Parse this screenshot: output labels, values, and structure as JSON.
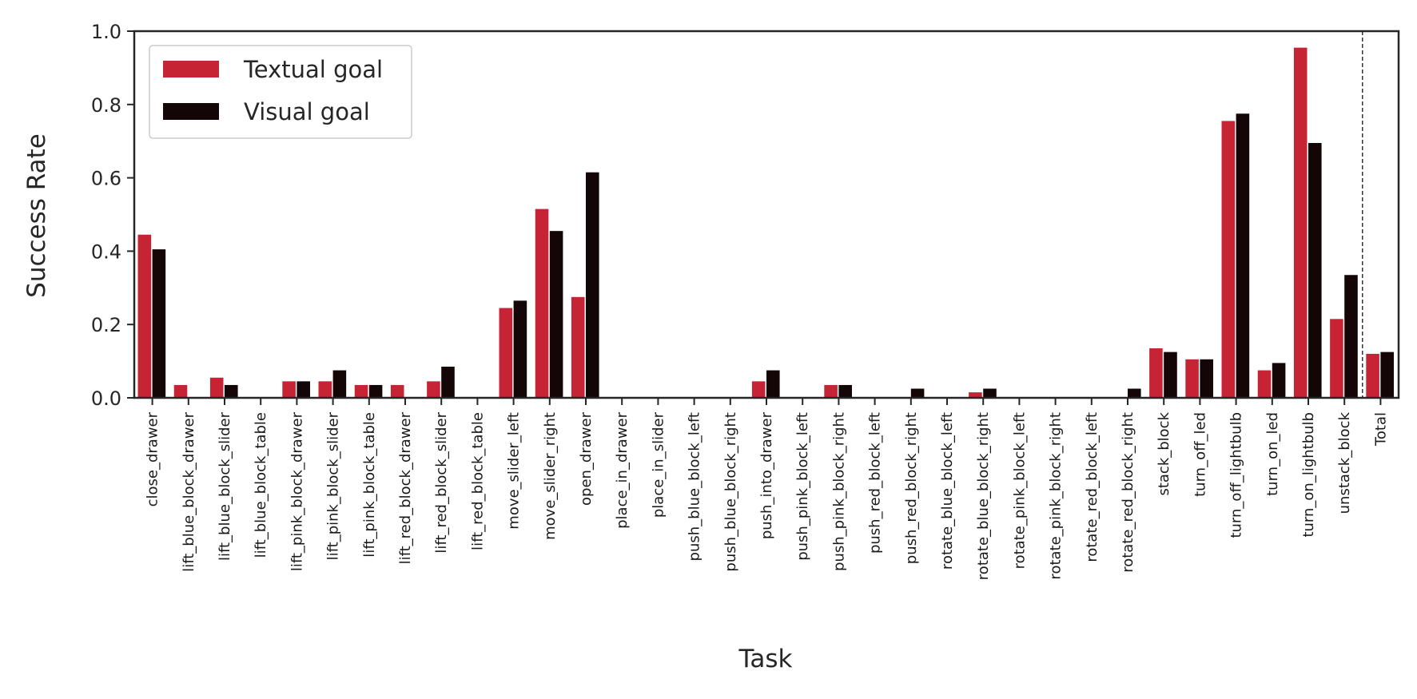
{
  "chart_data": {
    "type": "bar",
    "xlabel": "Task",
    "ylabel": "Success Rate",
    "ylim": [
      0,
      1.0
    ],
    "yticks": [
      "0.0",
      "0.2",
      "0.4",
      "0.6",
      "0.8",
      "1.0"
    ],
    "grid": false,
    "legend_position": "top-left",
    "separator_before": "Total",
    "categories": [
      "close_drawer",
      "lift_blue_block_drawer",
      "lift_blue_block_slider",
      "lift_blue_block_table",
      "lift_pink_block_drawer",
      "lift_pink_block_slider",
      "lift_pink_block_table",
      "lift_red_block_drawer",
      "lift_red_block_slider",
      "lift_red_block_table",
      "move_slider_left",
      "move_slider_right",
      "open_drawer",
      "place_in_drawer",
      "place_in_slider",
      "push_blue_block_left",
      "push_blue_block_right",
      "push_into_drawer",
      "push_pink_block_left",
      "push_pink_block_right",
      "push_red_block_left",
      "push_red_block_right",
      "rotate_blue_block_left",
      "rotate_blue_block_right",
      "rotate_pink_block_left",
      "rotate_pink_block_right",
      "rotate_red_block_left",
      "rotate_red_block_right",
      "stack_block",
      "turn_off_led",
      "turn_off_lightbulb",
      "turn_on_led",
      "turn_on_lightbulb",
      "unstack_block",
      "Total"
    ],
    "series": [
      {
        "name": "Textual goal",
        "color": "#c62435",
        "values": [
          0.445,
          0.035,
          0.055,
          0.0,
          0.045,
          0.045,
          0.035,
          0.035,
          0.045,
          0.0,
          0.245,
          0.515,
          0.275,
          0.0,
          0.0,
          0.0,
          0.0,
          0.045,
          0.0,
          0.035,
          0.0,
          0.0,
          0.0,
          0.015,
          0.0,
          0.0,
          0.0,
          0.0,
          0.135,
          0.105,
          0.755,
          0.075,
          0.955,
          0.215,
          0.12
        ]
      },
      {
        "name": "Visual goal",
        "color": "#140506",
        "values": [
          0.405,
          0.0,
          0.035,
          0.0,
          0.045,
          0.075,
          0.035,
          0.0,
          0.085,
          0.0,
          0.265,
          0.455,
          0.615,
          0.0,
          0.0,
          0.0,
          0.0,
          0.075,
          0.0,
          0.035,
          0.0,
          0.025,
          0.0,
          0.025,
          0.0,
          0.0,
          0.0,
          0.025,
          0.125,
          0.105,
          0.775,
          0.095,
          0.695,
          0.335,
          0.125
        ]
      }
    ]
  }
}
